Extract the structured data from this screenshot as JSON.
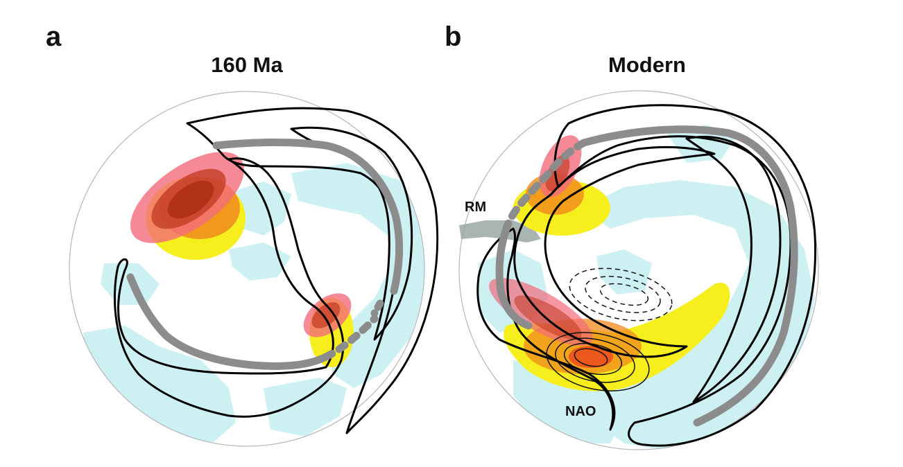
{
  "panels": {
    "a": {
      "letter": "a",
      "title": "160 Ma"
    },
    "b": {
      "letter": "b",
      "title": "Modern",
      "labels": {
        "rm": "RM",
        "nao": "NAO"
      }
    }
  },
  "colors": {
    "ocean": "#cdf0f3",
    "jet_outline": "#000000",
    "storm_track": "#8c8c8c",
    "high_latitude_anomaly": "#f26b7a",
    "anomaly_strong": "#c0391f",
    "anomaly_medium": "#f08a1c",
    "anomaly_weak": "#f7ee1e",
    "mountain_range": "#9aa8a6"
  }
}
